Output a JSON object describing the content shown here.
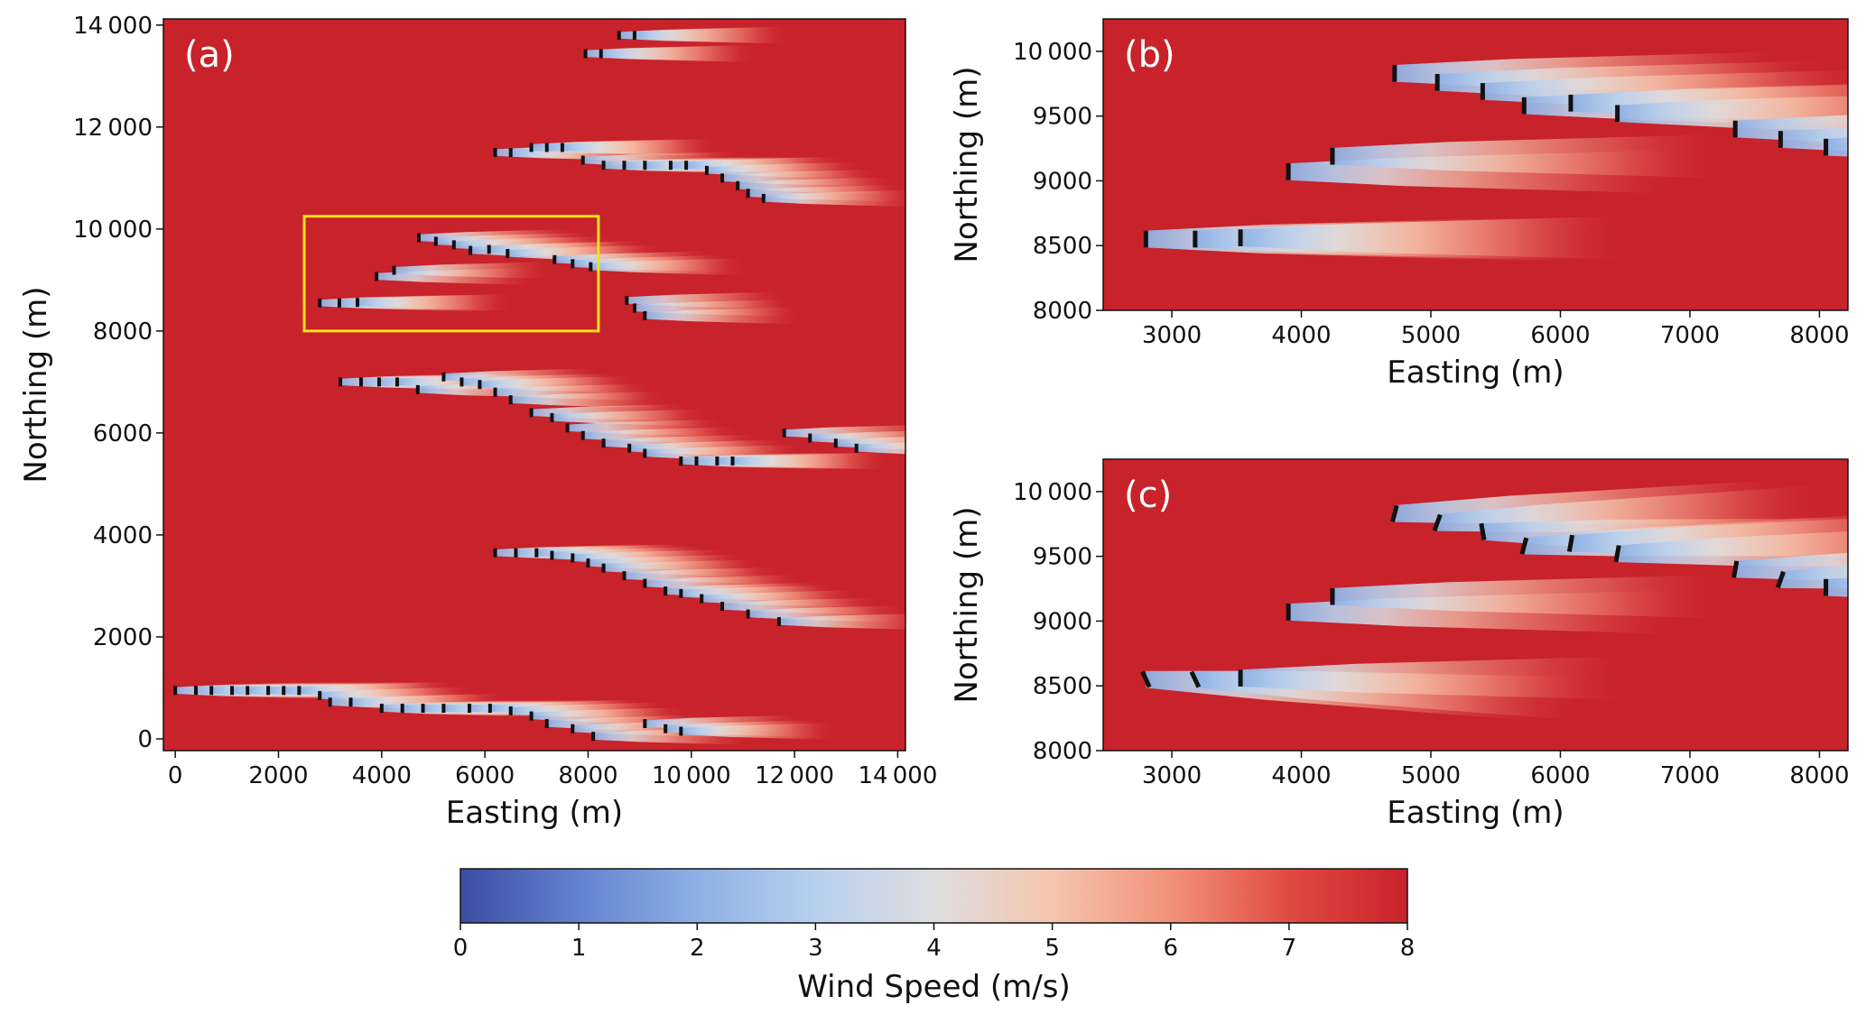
{
  "chart_data": [
    {
      "type": "wind-farm",
      "label": "(a)",
      "xlabel": "Easting (m)",
      "ylabel": "Northing (m)",
      "xlim": [
        -230,
        14150
      ],
      "ylim": [
        -230,
        14120
      ],
      "xticks": [
        0,
        2000,
        4000,
        6000,
        8000,
        {
          "value": 10000,
          "label": "10 000"
        },
        {
          "value": 12000,
          "label": "12 000"
        },
        {
          "value": 14000,
          "label": "14 000"
        }
      ],
      "yticks": [
        0,
        2000,
        4000,
        6000,
        8000,
        {
          "value": 10000,
          "label": "10 000"
        },
        {
          "value": 12000,
          "label": "12 000"
        },
        {
          "value": 14000,
          "label": "14 000"
        }
      ],
      "inset_box": {
        "xlim": [
          2500,
          8200
        ],
        "ylim": [
          8000,
          10250
        ],
        "color": "#f5e11a"
      },
      "turbines": {
        "x": [
          8600,
          8900,
          7950,
          8250,
          6200,
          6500,
          6900,
          7200,
          7500,
          7900,
          8300,
          8700,
          9100,
          9600,
          9900,
          10300,
          10600,
          10900,
          11100,
          11400,
          2800,
          3180,
          3530,
          3900,
          4240,
          4720,
          5050,
          5400,
          5720,
          6080,
          6440,
          7350,
          7700,
          8050,
          8750,
          8900,
          9100,
          3200,
          3600,
          3950,
          4300,
          4700,
          5200,
          5550,
          5900,
          6200,
          6500,
          6900,
          7300,
          7600,
          7900,
          8300,
          8800,
          9100,
          9800,
          10100,
          10500,
          10800,
          11800,
          12300,
          12800,
          13200,
          6200,
          6600,
          7000,
          7300,
          7700,
          8000,
          8300,
          8700,
          9100,
          9500,
          9800,
          10200,
          10600,
          11100,
          11700,
          0,
          400,
          700,
          1100,
          1400,
          1800,
          2100,
          2400,
          2800,
          3000,
          3400,
          4000,
          4400,
          4800,
          5200,
          5700,
          6100,
          6500,
          6900,
          7200,
          7700,
          8100,
          9100,
          9500,
          9800
        ],
        "y": [
          13800,
          13800,
          13440,
          13440,
          11500,
          11500,
          11600,
          11600,
          11600,
          11350,
          11250,
          11250,
          11250,
          11250,
          11250,
          11150,
          11000,
          10850,
          10700,
          10600,
          8550,
          8550,
          8560,
          9070,
          9190,
          9830,
          9760,
          9690,
          9580,
          9600,
          9520,
          9400,
          9320,
          9260,
          8600,
          8450,
          8300,
          7000,
          7000,
          7000,
          7000,
          6850,
          7100,
          7000,
          6950,
          6800,
          6650,
          6400,
          6300,
          6100,
          5950,
          5800,
          5700,
          5600,
          5450,
          5450,
          5450,
          5450,
          6000,
          5900,
          5800,
          5700,
          3650,
          3650,
          3650,
          3600,
          3550,
          3450,
          3350,
          3200,
          3050,
          2900,
          2850,
          2750,
          2600,
          2450,
          2300,
          950,
          950,
          950,
          950,
          950,
          950,
          950,
          950,
          850,
          720,
          720,
          600,
          600,
          600,
          600,
          600,
          600,
          550,
          450,
          300,
          200,
          50,
          300,
          200,
          150
        ]
      }
    },
    {
      "type": "wind-farm",
      "label": "(b)",
      "xlabel": "Easting (m)",
      "ylabel": "Northing (m)",
      "xlim": [
        2470,
        8220
      ],
      "ylim": [
        8000,
        10250
      ],
      "xticks": [
        3000,
        4000,
        5000,
        6000,
        7000,
        8000
      ],
      "yticks": [
        8000,
        8500,
        9000,
        9500,
        {
          "value": 10000,
          "label": "10 000"
        }
      ],
      "turbines": {
        "x": [
          2800,
          3180,
          3530,
          3900,
          4240,
          4720,
          5050,
          5400,
          5720,
          6080,
          6440,
          7350,
          7700,
          8050
        ],
        "y": [
          8550,
          8550,
          8560,
          9070,
          9190,
          9830,
          9760,
          9690,
          9580,
          9600,
          9520,
          9400,
          9320,
          9260
        ]
      }
    },
    {
      "type": "wind-farm",
      "label": "(c)",
      "xlabel": "Easting (m)",
      "ylabel": "Northing (m)",
      "xlim": [
        2470,
        8220
      ],
      "ylim": [
        8000,
        10250
      ],
      "xticks": [
        3000,
        4000,
        5000,
        6000,
        7000,
        8000
      ],
      "yticks": [
        8000,
        8500,
        9000,
        9500,
        {
          "value": 10000,
          "label": "10 000"
        }
      ],
      "turbines": {
        "x": [
          2800,
          3180,
          3530,
          3900,
          4240,
          4720,
          5050,
          5400,
          5720,
          6080,
          6440,
          7350,
          7700,
          8050
        ],
        "y": [
          8550,
          8550,
          8560,
          9070,
          9190,
          9830,
          9760,
          9690,
          9580,
          9600,
          9520,
          9400,
          9320,
          9260
        ],
        "yaw": [
          25,
          25,
          0,
          0,
          0,
          -15,
          -20,
          10,
          -15,
          -10,
          -10,
          -10,
          -20,
          0
        ]
      }
    },
    {
      "type": "colorbar",
      "label": "Wind Speed (m/s)",
      "ticks": [
        0,
        1,
        2,
        3,
        4,
        5,
        6,
        7,
        8
      ],
      "colors": [
        "#3b4ca3",
        "#6382cf",
        "#8db0e4",
        "#b8d0ee",
        "#dedddf",
        "#f5c5ae",
        "#f2917a",
        "#e14a42",
        "#c8222b"
      ]
    }
  ]
}
